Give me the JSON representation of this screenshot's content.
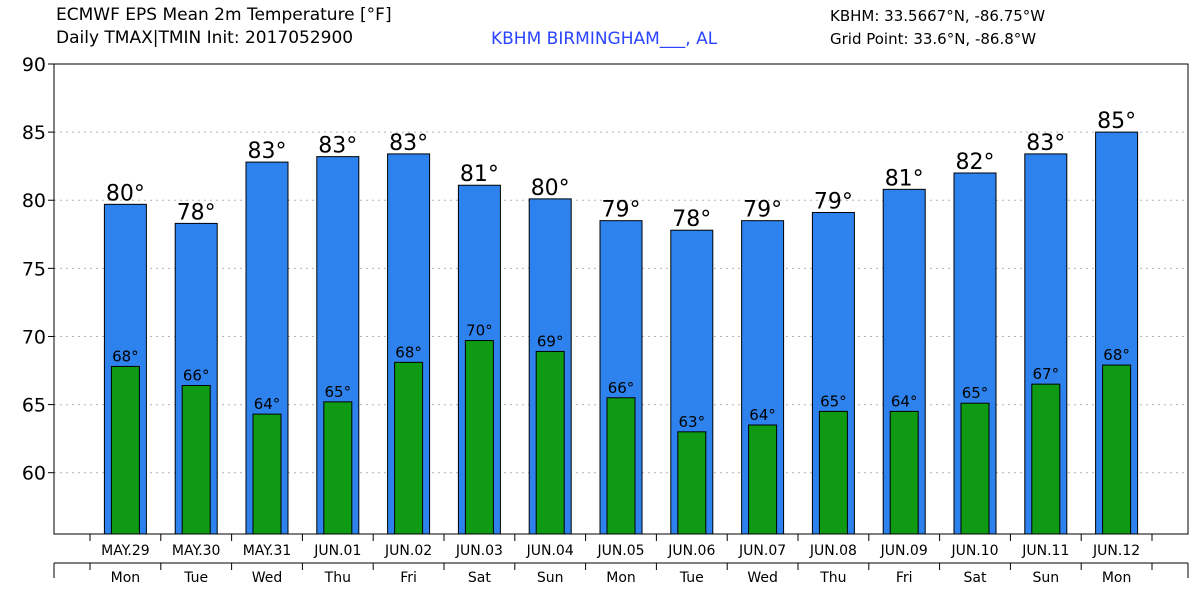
{
  "header": {
    "title_line1": "ECMWF EPS Mean 2m Temperature [°F]",
    "title_line2": "Daily TMAX|TMIN Init: 2017052900",
    "station": "KBHM BIRMINGHAM___, AL",
    "coord_station": "KBHM: 33.5667°N, -86.75°W",
    "coord_grid": "Grid Point: 33.6°N, -86.8°W"
  },
  "colors": {
    "tmax_bar": "#2d82ed",
    "tmin_bar": "#0f9a13",
    "grid": "#b4b4b4",
    "station_text": "#2b45ff"
  },
  "chart_data": {
    "type": "bar",
    "categories": [
      "MAY.29",
      "MAY.30",
      "MAY.31",
      "JUN.01",
      "JUN.02",
      "JUN.03",
      "JUN.04",
      "JUN.05",
      "JUN.06",
      "JUN.07",
      "JUN.08",
      "JUN.09",
      "JUN.10",
      "JUN.11",
      "JUN.12"
    ],
    "weekdays": [
      "Mon",
      "Tue",
      "Wed",
      "Thu",
      "Fri",
      "Sat",
      "Sun",
      "Mon",
      "Tue",
      "Wed",
      "Thu",
      "Fri",
      "Sat",
      "Sun",
      "Mon"
    ],
    "series": [
      {
        "key": "tmax",
        "values": [
          79.7,
          78.3,
          82.8,
          83.2,
          83.4,
          81.1,
          80.1,
          78.5,
          77.8,
          78.5,
          79.1,
          80.8,
          82.0,
          83.4,
          85.0
        ],
        "labels": [
          "80°",
          "78°",
          "83°",
          "83°",
          "83°",
          "81°",
          "80°",
          "79°",
          "78°",
          "79°",
          "79°",
          "81°",
          "82°",
          "83°",
          "85°"
        ]
      },
      {
        "key": "tmin",
        "values": [
          67.8,
          66.4,
          64.3,
          65.2,
          68.1,
          69.7,
          68.9,
          65.5,
          63.0,
          63.5,
          64.5,
          64.5,
          65.1,
          66.5,
          67.9
        ],
        "labels": [
          "68°",
          "66°",
          "64°",
          "65°",
          "68°",
          "70°",
          "69°",
          "66°",
          "63°",
          "64°",
          "65°",
          "64°",
          "65°",
          "67°",
          "68°"
        ]
      }
    ],
    "yticks": [
      "60",
      "65",
      "70",
      "75",
      "80",
      "85",
      "90"
    ],
    "ylim": [
      55.5,
      90
    ],
    "grid": true
  }
}
